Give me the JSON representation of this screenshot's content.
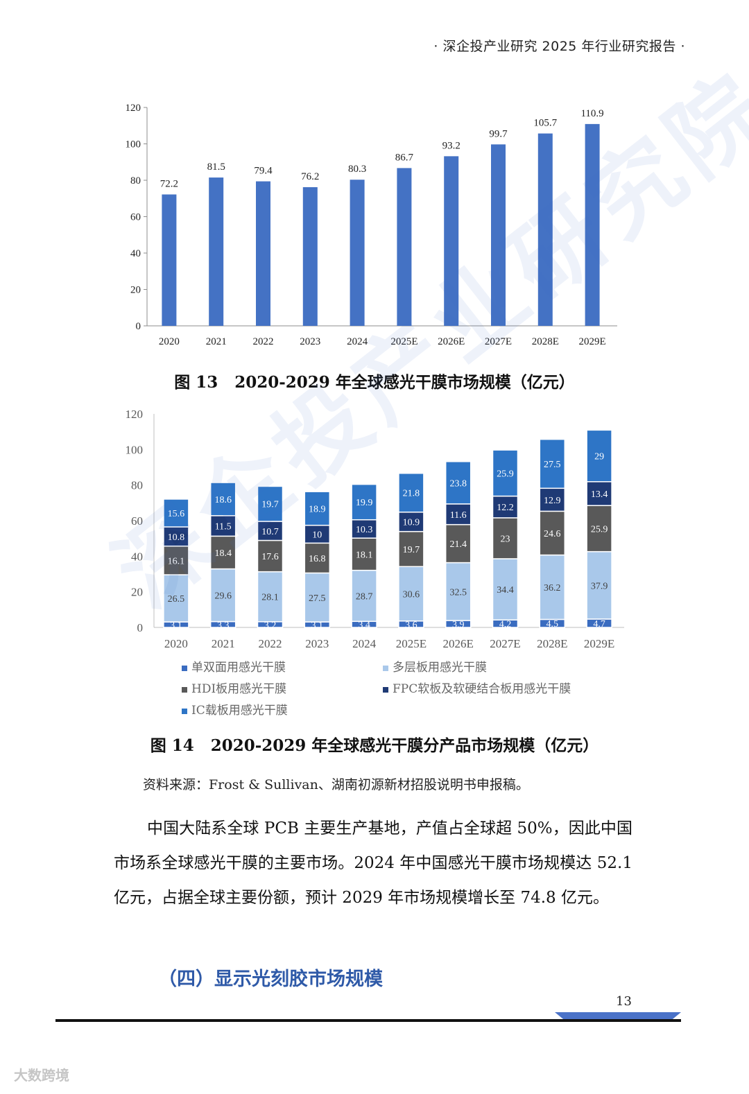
{
  "header": {
    "text": "· 深企投产业研究 2025 年行业研究报告 ·"
  },
  "watermark": "深企投产业研究院",
  "chart_data": [
    {
      "type": "bar",
      "categories": [
        "2020",
        "2021",
        "2022",
        "2023",
        "2024",
        "2025E",
        "2026E",
        "2027E",
        "2028E",
        "2029E"
      ],
      "values": [
        72.2,
        81.5,
        79.4,
        76.2,
        80.3,
        86.7,
        93.2,
        99.7,
        105.7,
        110.9
      ],
      "yticks": [
        0,
        20,
        40,
        60,
        80,
        100,
        120
      ],
      "ylim": [
        0,
        120
      ],
      "grid": false,
      "colors": {
        "bar": "#4472c4",
        "axis": "#8c8c8c"
      },
      "caption_num": "图 13",
      "caption_title": "2020-2029 年全球感光干膜市场规模（亿元）"
    },
    {
      "type": "bar",
      "stacked": true,
      "categories": [
        "2020",
        "2021",
        "2022",
        "2023",
        "2024",
        "2025E",
        "2026E",
        "2027E",
        "2028E",
        "2029E"
      ],
      "series": [
        {
          "name": "单双面用感光干膜",
          "color": "#3a6cc0",
          "values": [
            3.1,
            3.3,
            3.2,
            3.1,
            3.4,
            3.6,
            3.9,
            4.2,
            4.5,
            4.7
          ]
        },
        {
          "name": "多层板用感光干膜",
          "color": "#a9c8ea",
          "values": [
            26.5,
            29.6,
            28.1,
            27.5,
            28.7,
            30.6,
            32.5,
            34.4,
            36.2,
            37.9
          ]
        },
        {
          "name": "HDI板用感光干膜",
          "color": "#595959",
          "values": [
            16.1,
            18.4,
            17.6,
            16.8,
            18.1,
            19.7,
            21.4,
            23,
            24.6,
            25.9
          ]
        },
        {
          "name": "FPC软板及软硬结合板用感光干膜",
          "color": "#1f3a75",
          "values": [
            10.8,
            11.5,
            10.7,
            10,
            10.3,
            10.9,
            11.6,
            12.2,
            12.9,
            13.4
          ]
        },
        {
          "name": "IC载板用感光干膜",
          "color": "#2e75c6",
          "values": [
            15.6,
            18.6,
            19.7,
            18.9,
            19.9,
            21.8,
            23.8,
            25.9,
            27.5,
            29
          ]
        }
      ],
      "yticks": [
        0,
        20,
        40,
        60,
        80,
        100,
        120
      ],
      "ylim": [
        0,
        120
      ],
      "grid": false,
      "legend": "bottom",
      "caption_num": "图 14",
      "caption_title": "2020-2029 年全球感光干膜分产品市场规模（亿元）"
    }
  ],
  "source": "资料来源：Frost & Sullivan、湖南初源新材招股说明书申报稿。",
  "paragraph": "中国大陆系全球 PCB 主要生产基地，产值占全球超 50%，因此中国市场系全球感光干膜的主要市场。2024 年中国感光干膜市场规模达 52.1 亿元，占据全球主要份额，预计 2029 年市场规模增长至 74.8 亿元。",
  "section_title": "（四）显示光刻胶市场规模",
  "page_number": "13",
  "brand": "大数跨境"
}
